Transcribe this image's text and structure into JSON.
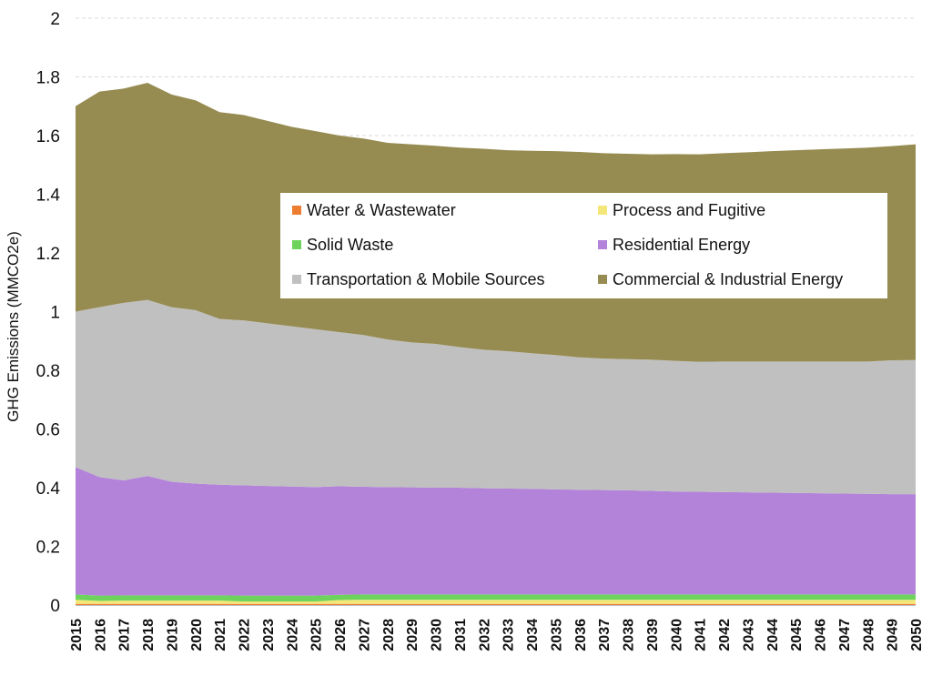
{
  "chart_data": {
    "type": "area",
    "stacked": true,
    "title": "",
    "xlabel": "",
    "ylabel": "GHG Emissions (MMCO2e)",
    "ylim": [
      0,
      2
    ],
    "yticks": [
      "0",
      "0.2",
      "0.4",
      "0.6",
      "0.8",
      "1",
      "1.2",
      "1.4",
      "1.6",
      "1.8",
      "2"
    ],
    "grid": "horizontal dashed",
    "legend_position": "center",
    "x": [
      "2015",
      "2016",
      "2017",
      "2018",
      "2019",
      "2020",
      "2021",
      "2022",
      "2023",
      "2024",
      "2025",
      "2026",
      "2027",
      "2028",
      "2029",
      "2030",
      "2031",
      "2032",
      "2033",
      "2034",
      "2035",
      "2036",
      "2037",
      "2038",
      "2039",
      "2040",
      "2041",
      "2042",
      "2043",
      "2044",
      "2045",
      "2046",
      "2047",
      "2048",
      "2049",
      "2050"
    ],
    "series": [
      {
        "name": "Water & Wastewater",
        "color": "#ed7d31",
        "values": [
          0.004,
          0.004,
          0.004,
          0.004,
          0.004,
          0.004,
          0.004,
          0.004,
          0.004,
          0.004,
          0.004,
          0.004,
          0.004,
          0.004,
          0.004,
          0.004,
          0.004,
          0.004,
          0.004,
          0.004,
          0.004,
          0.004,
          0.004,
          0.004,
          0.004,
          0.004,
          0.004,
          0.004,
          0.004,
          0.004,
          0.004,
          0.004,
          0.004,
          0.004,
          0.004,
          0.004
        ]
      },
      {
        "name": "Process and Fugitive",
        "color": "#f4e77a",
        "values": [
          0.014,
          0.01,
          0.011,
          0.011,
          0.011,
          0.011,
          0.011,
          0.008,
          0.008,
          0.008,
          0.008,
          0.013,
          0.014,
          0.014,
          0.014,
          0.014,
          0.014,
          0.014,
          0.014,
          0.014,
          0.014,
          0.014,
          0.014,
          0.014,
          0.014,
          0.014,
          0.014,
          0.014,
          0.014,
          0.014,
          0.014,
          0.014,
          0.014,
          0.014,
          0.014,
          0.014
        ]
      },
      {
        "name": "Solid Waste",
        "color": "#6ed35c",
        "values": [
          0.018,
          0.018,
          0.018,
          0.018,
          0.018,
          0.018,
          0.018,
          0.02,
          0.02,
          0.02,
          0.02,
          0.018,
          0.018,
          0.018,
          0.018,
          0.018,
          0.018,
          0.018,
          0.018,
          0.018,
          0.018,
          0.018,
          0.018,
          0.018,
          0.018,
          0.018,
          0.018,
          0.018,
          0.018,
          0.018,
          0.018,
          0.018,
          0.018,
          0.018,
          0.018,
          0.018
        ]
      },
      {
        "name": "Residential Energy",
        "color": "#b383da",
        "values": [
          0.434,
          0.404,
          0.392,
          0.407,
          0.387,
          0.381,
          0.377,
          0.376,
          0.374,
          0.372,
          0.37,
          0.37,
          0.367,
          0.366,
          0.365,
          0.364,
          0.364,
          0.362,
          0.361,
          0.36,
          0.358,
          0.357,
          0.356,
          0.355,
          0.353,
          0.351,
          0.35,
          0.349,
          0.348,
          0.347,
          0.346,
          0.345,
          0.344,
          0.343,
          0.342,
          0.342
        ]
      },
      {
        "name": "Transportation & Mobile Sources",
        "color": "#c0c0c0",
        "values": [
          0.53,
          0.579,
          0.605,
          0.6,
          0.595,
          0.591,
          0.565,
          0.562,
          0.554,
          0.546,
          0.538,
          0.525,
          0.517,
          0.503,
          0.494,
          0.49,
          0.479,
          0.472,
          0.468,
          0.462,
          0.458,
          0.451,
          0.448,
          0.447,
          0.447,
          0.445,
          0.443,
          0.445,
          0.446,
          0.447,
          0.448,
          0.449,
          0.45,
          0.451,
          0.456,
          0.457
        ]
      },
      {
        "name": "Commercial & Industrial Energy",
        "color": "#968b51",
        "values": [
          0.7,
          0.735,
          0.73,
          0.74,
          0.725,
          0.715,
          0.705,
          0.7,
          0.69,
          0.68,
          0.675,
          0.67,
          0.67,
          0.67,
          0.675,
          0.675,
          0.68,
          0.685,
          0.685,
          0.69,
          0.695,
          0.7,
          0.7,
          0.7,
          0.7,
          0.705,
          0.707,
          0.71,
          0.713,
          0.717,
          0.72,
          0.723,
          0.726,
          0.729,
          0.73,
          0.735
        ]
      }
    ]
  }
}
